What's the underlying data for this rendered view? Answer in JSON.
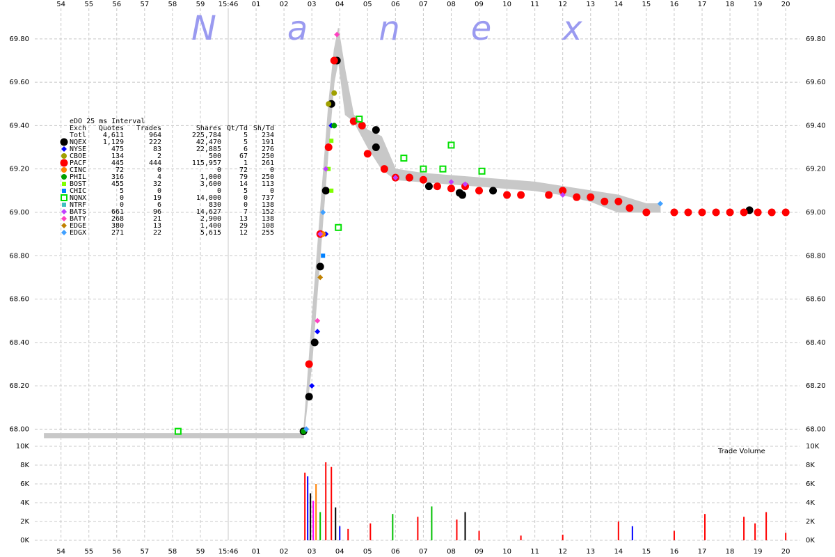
{
  "chart_data": {
    "type": "scatter",
    "watermark": "Nanex",
    "xlim": [
      -6.94,
      20.52
    ],
    "xticks": [
      {
        "value": -6,
        "label": "54"
      },
      {
        "value": -5,
        "label": "55"
      },
      {
        "value": -4,
        "label": "56"
      },
      {
        "value": -3,
        "label": "57"
      },
      {
        "value": -2,
        "label": "58"
      },
      {
        "value": -1,
        "label": "59"
      },
      {
        "value": 0,
        "label": "15:46"
      },
      {
        "value": 1,
        "label": "01"
      },
      {
        "value": 2,
        "label": "02"
      },
      {
        "value": 3,
        "label": "03"
      },
      {
        "value": 4,
        "label": "04"
      },
      {
        "value": 5,
        "label": "05"
      },
      {
        "value": 6,
        "label": "06"
      },
      {
        "value": 7,
        "label": "07"
      },
      {
        "value": 8,
        "label": "08"
      },
      {
        "value": 9,
        "label": "09"
      },
      10,
      11,
      12,
      13,
      14,
      15,
      16,
      17,
      18,
      19,
      20
    ],
    "ylim": [
      67.95,
      69.915
    ],
    "yticks": [
      {
        "value": 68.0,
        "label": "68.00"
      },
      {
        "value": 68.2,
        "label": "68.20"
      },
      {
        "value": 68.4,
        "label": "68.40"
      },
      {
        "value": 68.6,
        "label": "68.60"
      },
      {
        "value": 68.8,
        "label": "68.80"
      },
      {
        "value": 69.0,
        "label": "69.00"
      },
      {
        "value": 69.2,
        "label": "69.20"
      },
      {
        "value": 69.4,
        "label": "69.40"
      },
      {
        "value": 69.6,
        "label": "69.60"
      },
      {
        "value": 69.8,
        "label": "69.80"
      }
    ],
    "grid": true,
    "nbbo": {
      "color": "#c8c8c8",
      "x": [
        -6.6,
        2.7,
        3.0,
        3.3,
        3.6,
        3.8,
        3.95,
        4.2,
        4.5,
        5.0,
        5.5,
        6.0,
        7.0,
        8.0,
        9.0,
        10.0,
        11.0,
        12.0,
        13.0,
        14.0,
        15.0,
        15.5
      ],
      "low": [
        67.96,
        67.96,
        68.3,
        68.8,
        69.3,
        69.6,
        69.7,
        69.45,
        69.42,
        69.3,
        69.2,
        69.15,
        69.14,
        69.13,
        69.12,
        69.11,
        69.1,
        69.08,
        69.05,
        69.0,
        69.0,
        69.0
      ],
      "high": [
        67.98,
        67.98,
        68.5,
        69.0,
        69.5,
        69.75,
        69.85,
        69.65,
        69.45,
        69.38,
        69.35,
        69.2,
        69.18,
        69.17,
        69.16,
        69.15,
        69.14,
        69.12,
        69.1,
        69.08,
        69.04,
        69.04
      ]
    },
    "table_title": "eDO 25 ms Interval",
    "table_columns": [
      "Exch",
      "Quotes",
      "Trades",
      "Shares",
      "Qt/Td",
      "Sh/Td"
    ],
    "total": {
      "name": "Totl",
      "quotes": "4,611",
      "trades": "964",
      "shares": "225,784",
      "qt_td": "5",
      "sh_td": "234"
    },
    "series": [
      {
        "name": "NQEX",
        "color": "#000000",
        "marker": "big-circle",
        "quotes": "1,129",
        "trades": "222",
        "shares": "42,470",
        "qt_td": "5",
        "sh_td": "191",
        "x": [
          2.7,
          2.9,
          3.1,
          3.3,
          3.5,
          3.7,
          3.9,
          5.3,
          5.3,
          6.5,
          7.2,
          8.3,
          8.4,
          9.5,
          18.7
        ],
        "values": [
          67.99,
          68.15,
          68.4,
          68.75,
          69.1,
          69.5,
          69.7,
          69.38,
          69.3,
          69.16,
          69.12,
          69.09,
          69.08,
          69.1,
          69.01
        ]
      },
      {
        "name": "NYSE",
        "color": "#0000ff",
        "marker": "diamond",
        "quotes": "475",
        "trades": "83",
        "shares": "22,885",
        "qt_td": "6",
        "sh_td": "276",
        "x": [
          2.8,
          3.0,
          3.2,
          3.5,
          3.7
        ],
        "values": [
          68.0,
          68.2,
          68.45,
          68.9,
          69.4
        ]
      },
      {
        "name": "CBOE",
        "color": "#a0a000",
        "marker": "circle",
        "quotes": "134",
        "trades": "2",
        "shares": "500",
        "qt_td": "67",
        "sh_td": "250",
        "x": [
          3.6,
          3.8
        ],
        "values": [
          69.5,
          69.55
        ]
      },
      {
        "name": "PACF",
        "color": "#ff0000",
        "marker": "big-circle",
        "quotes": "445",
        "trades": "444",
        "shares": "115,957",
        "qt_td": "1",
        "sh_td": "261",
        "x": [
          2.9,
          3.3,
          3.6,
          3.8,
          4.5,
          4.8,
          5.0,
          5.6,
          6.0,
          6.5,
          7.0,
          7.5,
          8.0,
          8.5,
          9.0,
          10.0,
          10.5,
          11.5,
          12.0,
          12.5,
          13.0,
          13.5,
          14.0,
          14.4,
          15.0,
          16.0,
          16.5,
          17.0,
          17.5,
          18.0,
          18.5,
          19.0,
          19.5,
          20.0
        ],
        "values": [
          68.3,
          68.9,
          69.3,
          69.7,
          69.42,
          69.4,
          69.27,
          69.2,
          69.16,
          69.16,
          69.15,
          69.12,
          69.11,
          69.12,
          69.1,
          69.08,
          69.08,
          69.08,
          69.1,
          69.07,
          69.07,
          69.05,
          69.05,
          69.02,
          69.0,
          69.0,
          69.0,
          69.0,
          69.0,
          69.0,
          69.0,
          69.0,
          69.0,
          69.0
        ]
      },
      {
        "name": "CINC",
        "color": "#ff8000",
        "marker": "circle",
        "quotes": "72",
        "trades": "0",
        "shares": "0",
        "qt_td": "72",
        "sh_td": "0",
        "x": [
          3.4
        ],
        "values": [
          68.9
        ]
      },
      {
        "name": "PHIL",
        "color": "#00a000",
        "marker": "circle",
        "quotes": "316",
        "trades": "4",
        "shares": "1,000",
        "qt_td": "79",
        "sh_td": "250",
        "x": [
          2.7,
          3.8
        ],
        "values": [
          67.99,
          69.4
        ]
      },
      {
        "name": "BOST",
        "color": "#80ff00",
        "marker": "square",
        "quotes": "455",
        "trades": "32",
        "shares": "3,600",
        "qt_td": "14",
        "sh_td": "113",
        "x": [
          3.6,
          3.7,
          3.7
        ],
        "values": [
          69.2,
          69.1,
          69.33
        ]
      },
      {
        "name": "CHIC",
        "color": "#0080ff",
        "marker": "square",
        "quotes": "5",
        "trades": "0",
        "shares": "0",
        "qt_td": "5",
        "sh_td": "0",
        "x": [
          3.4
        ],
        "values": [
          68.8
        ]
      },
      {
        "name": "NQNX",
        "color": "#00e000",
        "marker": "open-square",
        "quotes": "0",
        "trades": "19",
        "shares": "14,000",
        "qt_td": "0",
        "sh_td": "737",
        "x": [
          -1.8,
          3.95,
          4.7,
          6.3,
          7.0,
          7.7,
          8.0,
          9.1
        ],
        "values": [
          67.99,
          68.93,
          69.43,
          69.25,
          69.2,
          69.2,
          69.31,
          69.19
        ]
      },
      {
        "name": "NTRF",
        "color": "#40c0c0",
        "marker": "square",
        "quotes": "0",
        "trades": "6",
        "shares": "830",
        "qt_td": "0",
        "sh_td": "138",
        "x": [],
        "values": []
      },
      {
        "name": "BATS",
        "color": "#c040ff",
        "marker": "diamond",
        "quotes": "661",
        "trades": "96",
        "shares": "14,627",
        "qt_td": "7",
        "sh_td": "152",
        "x": [
          3.3,
          3.5,
          6.0,
          8.0,
          8.5,
          12.0
        ],
        "values": [
          68.9,
          69.2,
          69.16,
          69.14,
          69.13,
          69.08
        ]
      },
      {
        "name": "BATY",
        "color": "#ff40c0",
        "marker": "diamond",
        "quotes": "268",
        "trades": "21",
        "shares": "2,900",
        "qt_td": "13",
        "sh_td": "138",
        "x": [
          3.2,
          3.9
        ],
        "values": [
          68.5,
          69.82
        ]
      },
      {
        "name": "EDGE",
        "color": "#c08000",
        "marker": "diamond",
        "quotes": "380",
        "trades": "13",
        "shares": "1,400",
        "qt_td": "29",
        "sh_td": "108",
        "x": [
          3.3
        ],
        "values": [
          68.7
        ]
      },
      {
        "name": "EDGX",
        "color": "#40a0ff",
        "marker": "diamond",
        "quotes": "271",
        "trades": "22",
        "shares": "5,615",
        "qt_td": "12",
        "sh_td": "255",
        "x": [
          2.8,
          3.4,
          15.5
        ],
        "values": [
          68.0,
          69.0,
          69.04
        ]
      }
    ],
    "volume": {
      "title": "Trade Volume",
      "ylim": [
        0,
        10000
      ],
      "yticks": [
        {
          "value": 0,
          "label": "0K"
        },
        {
          "value": 2000,
          "label": "2K"
        },
        {
          "value": 4000,
          "label": "4K"
        },
        {
          "value": 6000,
          "label": "6K"
        },
        {
          "value": 8000,
          "label": "8K"
        },
        {
          "value": 10000,
          "label": "10K"
        }
      ],
      "x": [
        2.75,
        2.85,
        2.95,
        3.05,
        3.15,
        3.3,
        3.5,
        3.7,
        3.85,
        4.0,
        4.3,
        5.1,
        5.9,
        6.8,
        7.3,
        8.2,
        8.5,
        9.0,
        10.5,
        12.0,
        14.0,
        14.5,
        16.0,
        17.1,
        18.5,
        18.9,
        19.3,
        20.0
      ],
      "values": [
        7200,
        6800,
        5000,
        4200,
        6000,
        3000,
        8300,
        7800,
        3500,
        1500,
        1200,
        1800,
        2800,
        2500,
        3600,
        2200,
        3000,
        1000,
        500,
        600,
        2000,
        1500,
        1000,
        2800,
        2500,
        1800,
        3000,
        800
      ],
      "colors": [
        "#ff0000",
        "#0000ff",
        "#000000",
        "#ff00ff",
        "#ff8000",
        "#00c000",
        "#ff0000",
        "#ff0000",
        "#000000",
        "#0000ff",
        "#ff0000",
        "#ff0000",
        "#00c000",
        "#ff0000",
        "#00c000",
        "#ff0000",
        "#000000",
        "#ff0000",
        "#ff0000",
        "#ff0000",
        "#ff0000",
        "#0000ff",
        "#ff0000",
        "#ff0000",
        "#ff0000",
        "#ff0000",
        "#ff0000",
        "#ff0000"
      ]
    }
  }
}
